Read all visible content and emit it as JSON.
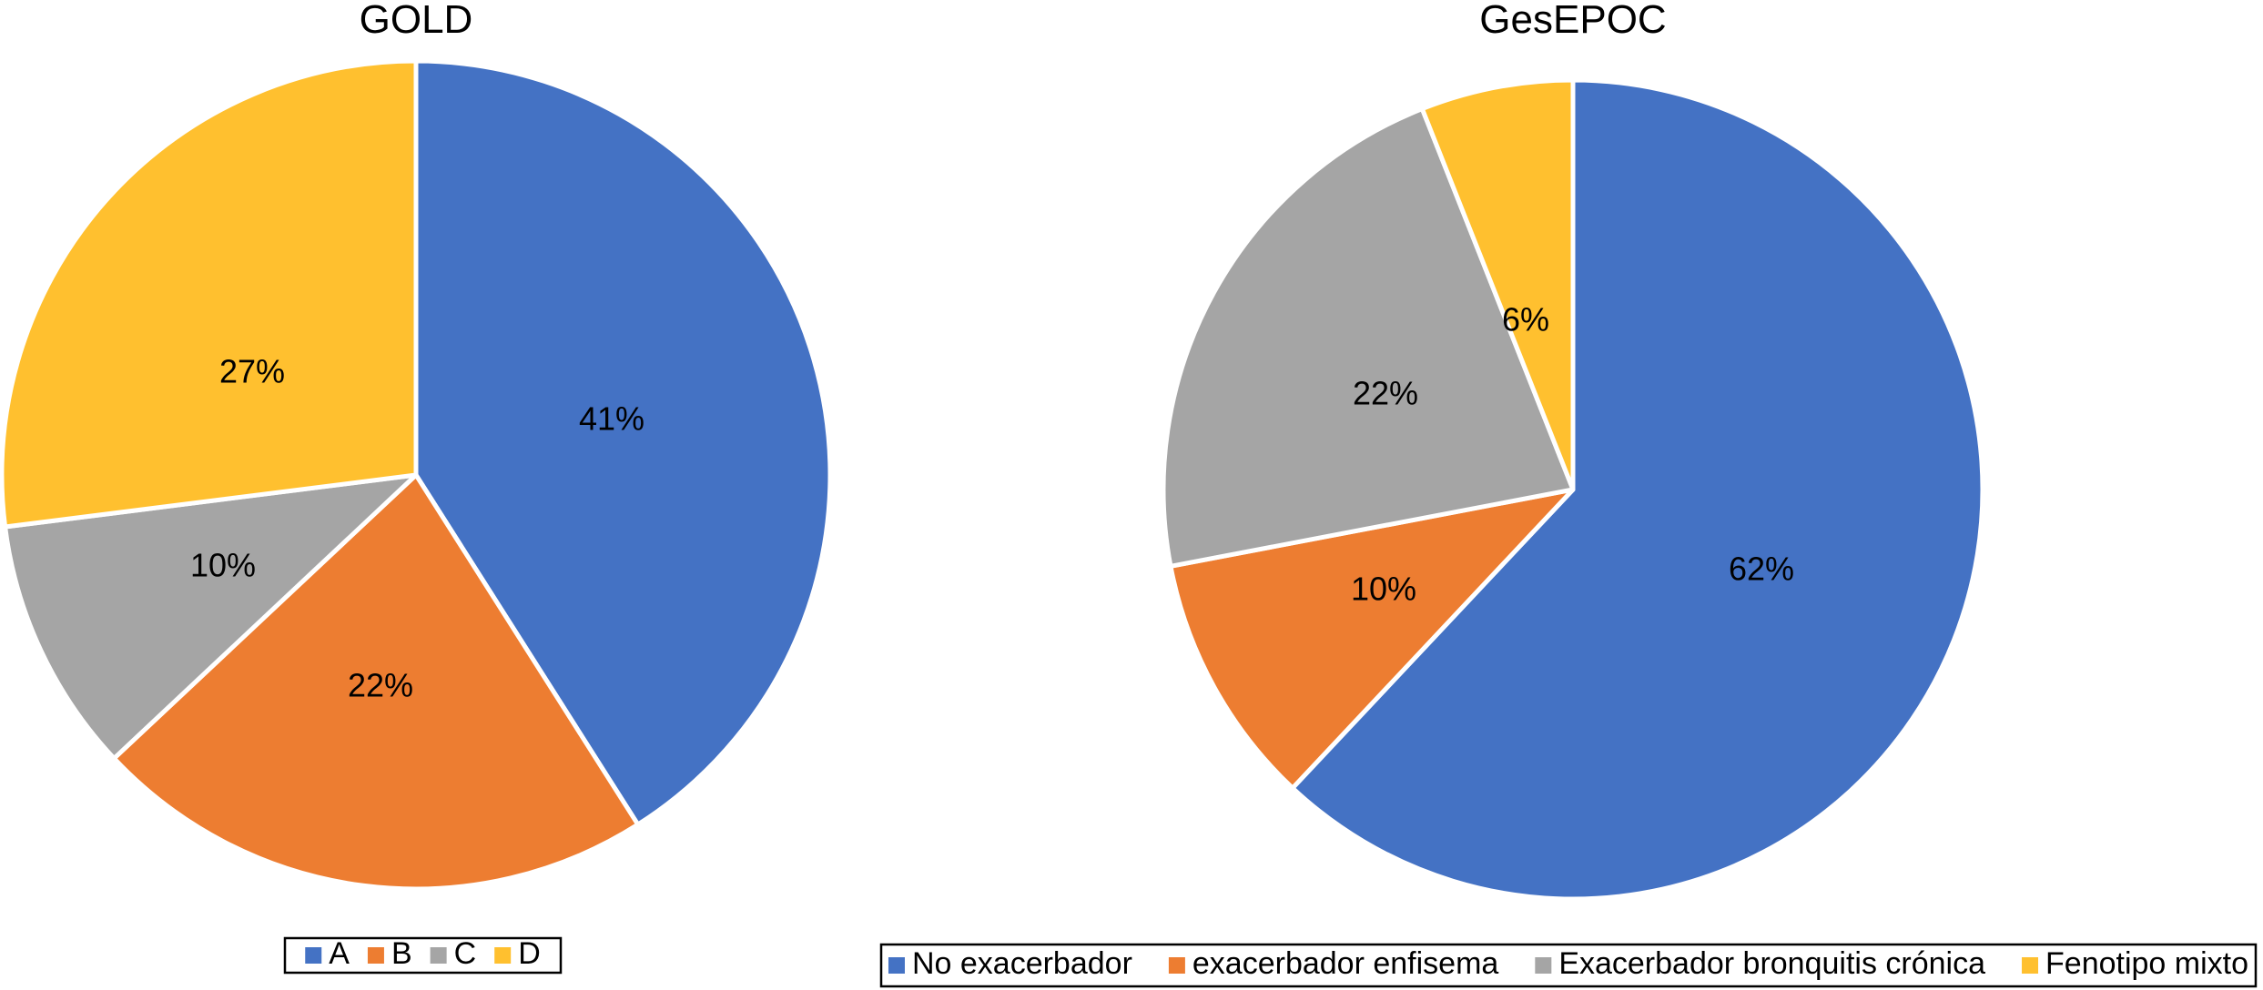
{
  "chart_data": [
    {
      "type": "pie",
      "title": "GOLD",
      "start_angle_deg": 0,
      "direction": "clockwise",
      "slices": [
        {
          "label": "A",
          "value": 41,
          "display": "41%",
          "color": "#4472C4"
        },
        {
          "label": "B",
          "value": 22,
          "display": "22%",
          "color": "#ED7D31"
        },
        {
          "label": "C",
          "value": 10,
          "display": "10%",
          "color": "#A5A5A5"
        },
        {
          "label": "D",
          "value": 27,
          "display": "27%",
          "color": "#FFC02F"
        }
      ],
      "legend_placement": "bottom"
    },
    {
      "type": "pie",
      "title": "GesEPOC",
      "start_angle_deg": 0,
      "direction": "clockwise",
      "slices": [
        {
          "label": "No exacerbador",
          "value": 62,
          "display": "62%",
          "color": "#4472C4"
        },
        {
          "label": "exacerbador enfisema",
          "value": 10,
          "display": "10%",
          "color": "#ED7D31"
        },
        {
          "label": "Exacerbador bronquitis crónica",
          "value": 22,
          "display": "22%",
          "color": "#A5A5A5"
        },
        {
          "label": "Fenotipo mixto",
          "value": 6,
          "display": "6%",
          "color": "#FFC02F"
        }
      ],
      "legend_placement": "bottom"
    }
  ]
}
